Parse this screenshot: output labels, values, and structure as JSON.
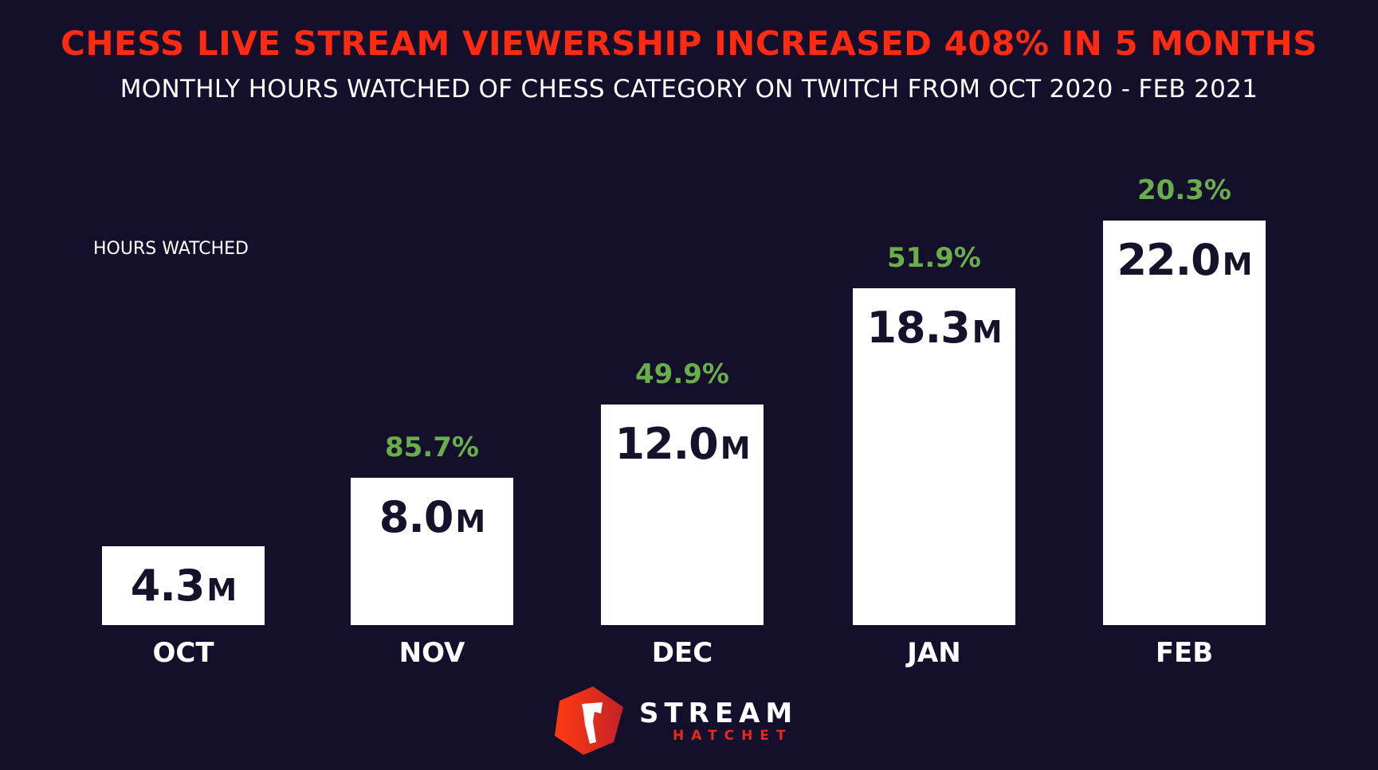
{
  "chart_data": {
    "type": "bar",
    "title": "CHESS LIVE STREAM VIEWERSHIP INCREASED 408% IN 5 MONTHS",
    "subtitle": "MONTHLY HOURS WATCHED OF CHESS CATEGORY ON TWITCH FROM OCT 2020 - FEB 2021",
    "ylabel": "HOURS WATCHED",
    "xlabel": "",
    "categories": [
      "OCT",
      "NOV",
      "DEC",
      "JAN",
      "FEB"
    ],
    "values": [
      4.3,
      8.0,
      12.0,
      18.3,
      22.0
    ],
    "value_labels": [
      "4.3",
      "8.0",
      "12.0",
      "18.3",
      "22.0"
    ],
    "value_unit": "M",
    "growth_labels": [
      "",
      "85.7%",
      "49.9%",
      "51.9%",
      "20.3%"
    ],
    "ylim": [
      0,
      22.0
    ],
    "grid": false,
    "colors": {
      "background": "#14102c",
      "bar": "#ffffff",
      "title": "#ff2a12",
      "growth": "#6aae4c"
    }
  },
  "logo": {
    "line1": "STREAM",
    "line2": "HATCHET"
  }
}
